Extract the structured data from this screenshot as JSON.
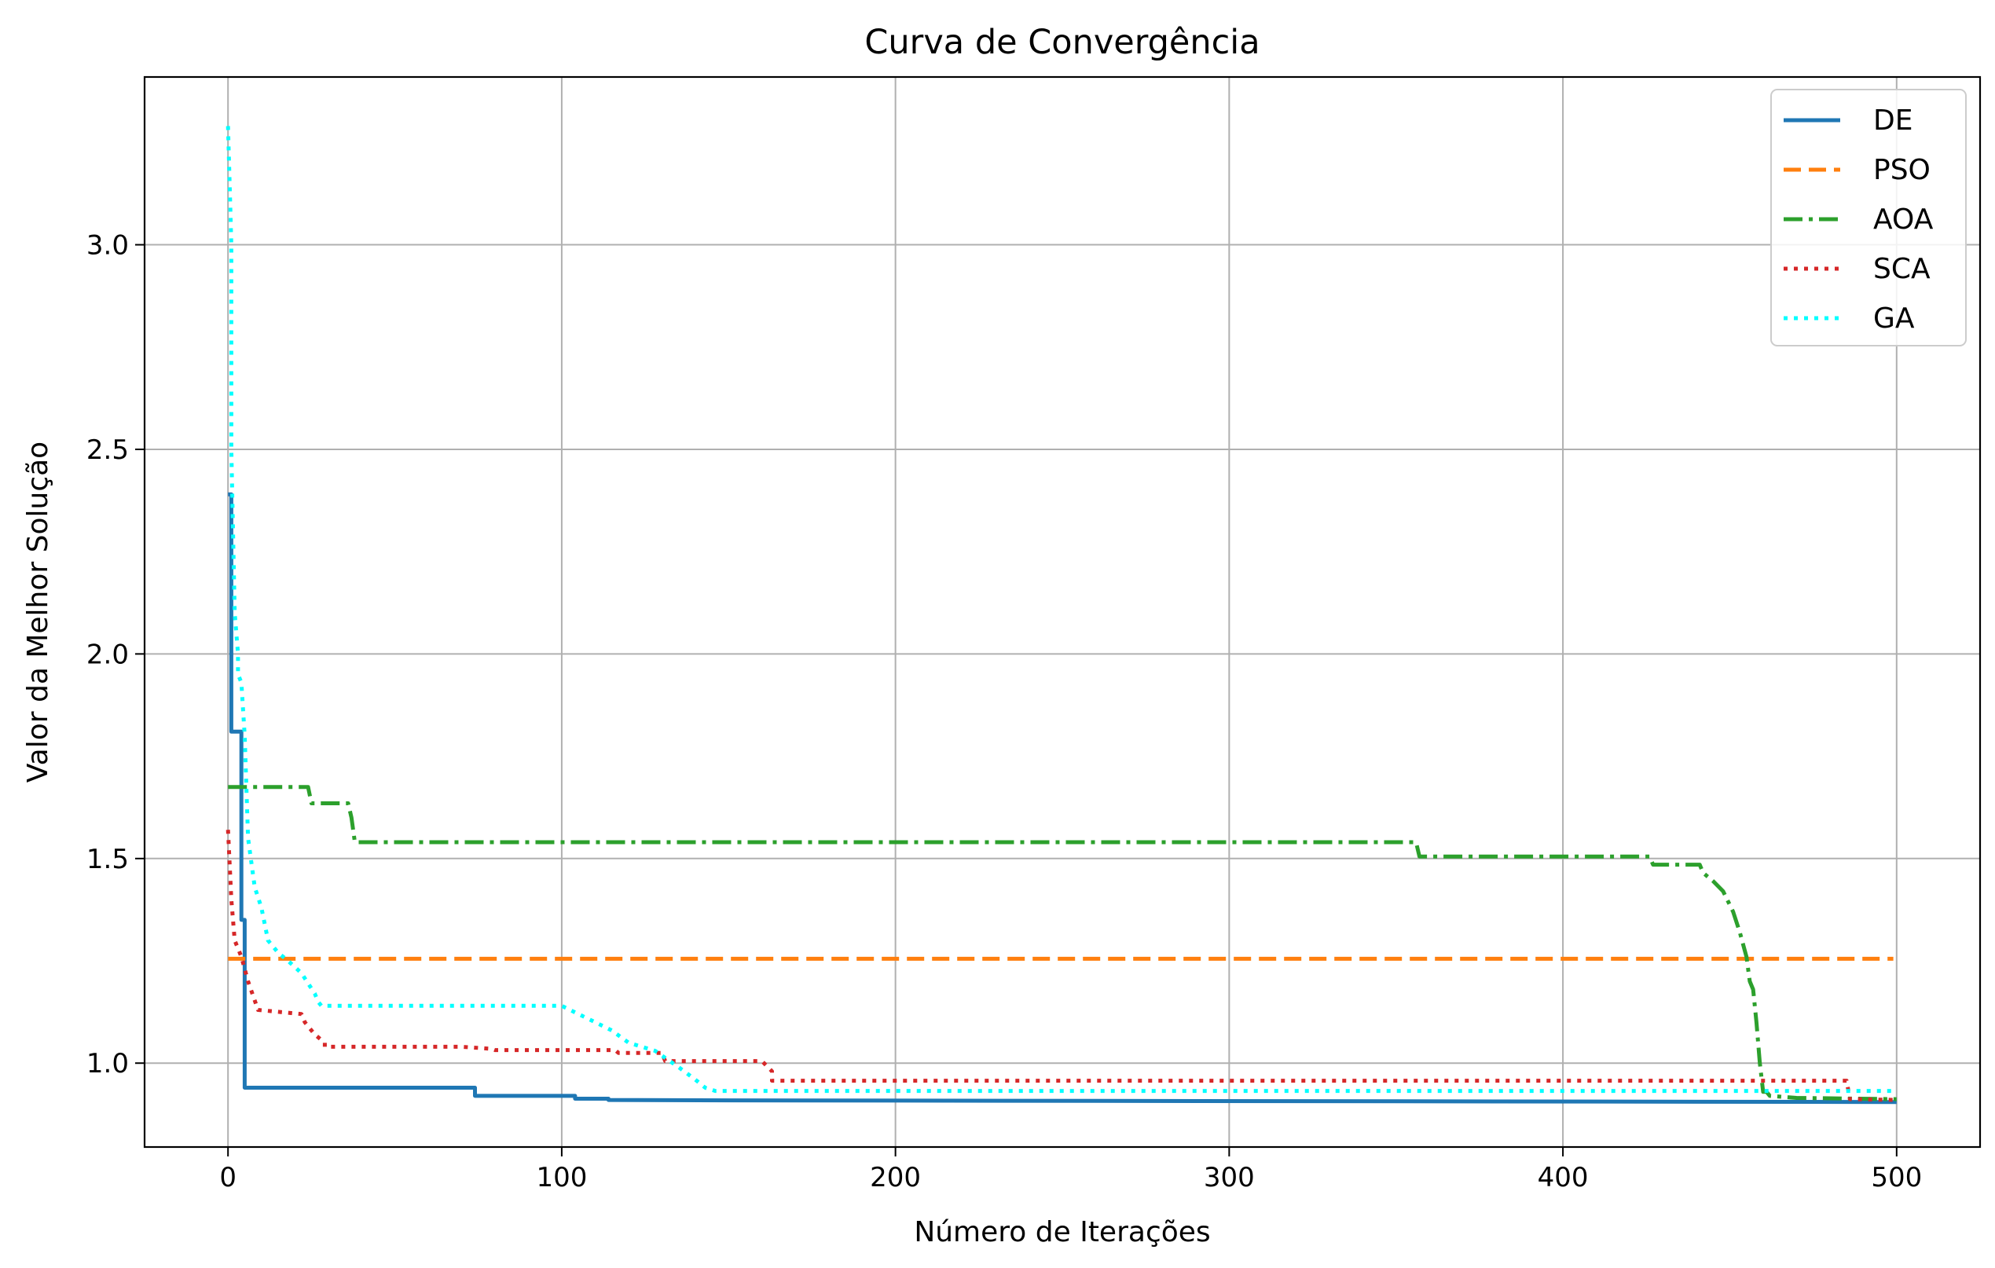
{
  "chart_data": {
    "type": "line",
    "title": "Curva de Convergência",
    "xlabel": "Número de Iterações",
    "ylabel": "Valor da Melhor Solução",
    "xlim": [
      -25,
      525
    ],
    "ylim": [
      0.795,
      3.41
    ],
    "xticks": [
      0,
      100,
      200,
      300,
      400,
      500
    ],
    "yticks": [
      1.0,
      1.5,
      2.0,
      2.5,
      3.0
    ],
    "grid": true,
    "legend_position": "top-right",
    "series": [
      {
        "name": "DE",
        "color": "#1f77b4",
        "dash": "solid",
        "x": [
          0,
          1,
          1,
          4,
          4,
          5,
          5,
          74,
          74,
          104,
          104,
          114,
          114,
          150,
          500
        ],
        "y": [
          2.39,
          2.39,
          1.81,
          1.81,
          1.35,
          1.35,
          0.94,
          0.94,
          0.92,
          0.92,
          0.913,
          0.913,
          0.91,
          0.909,
          0.905
        ]
      },
      {
        "name": "PSO",
        "color": "#ff7f0e",
        "dash": "dashed",
        "x": [
          0,
          499
        ],
        "y": [
          1.255,
          1.255
        ]
      },
      {
        "name": "AOA",
        "color": "#2ca02c",
        "dash": "dashdot",
        "x": [
          0,
          24,
          25,
          36,
          37,
          38,
          356,
          357,
          426,
          427,
          441,
          442,
          445,
          448,
          451,
          453,
          455,
          456,
          457,
          458,
          459,
          460,
          461,
          462,
          470,
          500
        ],
        "y": [
          1.675,
          1.675,
          1.635,
          1.635,
          1.6,
          1.54,
          1.54,
          1.505,
          1.505,
          1.485,
          1.485,
          1.465,
          1.445,
          1.42,
          1.37,
          1.32,
          1.26,
          1.2,
          1.18,
          1.1,
          1.0,
          0.93,
          0.93,
          0.92,
          0.915,
          0.912
        ]
      },
      {
        "name": "SCA",
        "color": "#d62728",
        "dash": "dotted",
        "x": [
          0,
          1,
          2,
          4,
          6,
          9,
          9,
          22,
          23,
          26,
          29,
          29,
          70,
          79,
          80,
          116,
          117,
          130,
          131,
          160,
          163,
          163,
          485,
          486,
          500
        ],
        "y": [
          1.57,
          1.4,
          1.3,
          1.26,
          1.2,
          1.13,
          1.13,
          1.12,
          1.1,
          1.07,
          1.05,
          1.04,
          1.04,
          1.035,
          1.032,
          1.032,
          1.025,
          1.025,
          1.005,
          1.005,
          0.98,
          0.957,
          0.957,
          0.912,
          0.91
        ]
      },
      {
        "name": "GA",
        "color": "#00ffff",
        "dash": "dotted",
        "x": [
          0,
          1,
          1,
          2,
          3,
          3,
          4,
          5,
          6,
          8,
          10,
          12,
          15,
          18,
          22,
          26,
          27,
          28,
          100,
          105,
          110,
          115,
          120,
          128,
          135,
          140,
          143,
          146,
          500
        ],
        "y": [
          3.29,
          3.0,
          2.5,
          2.1,
          2.0,
          1.95,
          1.93,
          1.8,
          1.55,
          1.43,
          1.38,
          1.3,
          1.27,
          1.25,
          1.22,
          1.17,
          1.15,
          1.14,
          1.14,
          1.12,
          1.1,
          1.08,
          1.05,
          1.03,
          0.99,
          0.96,
          0.94,
          0.932,
          0.932
        ]
      }
    ]
  }
}
